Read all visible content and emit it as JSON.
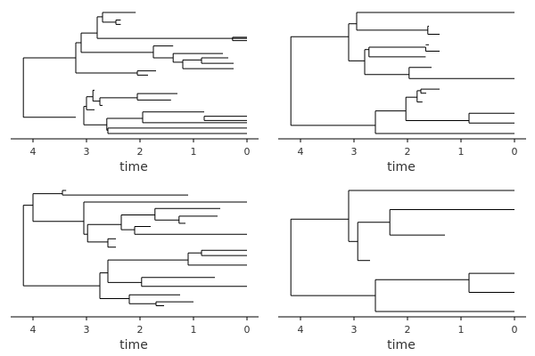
{
  "chart_data": [
    {
      "type": "tree",
      "panel": "top-left",
      "xlabel": "time",
      "x_ticks": [
        4,
        3,
        2,
        1,
        0
      ],
      "xlim": [
        4.35,
        -0.15
      ],
      "segments": [
        [
          4.18,
          7.0,
          3.2,
          7.0
        ],
        [
          4.18,
          1.5,
          3.2,
          1.5
        ],
        [
          4.18,
          1.5,
          4.18,
          7.0
        ],
        [
          3.2,
          8.4,
          3.1,
          8.4
        ],
        [
          3.2,
          5.6,
          2.05,
          5.6
        ],
        [
          3.2,
          5.6,
          3.2,
          8.4
        ],
        [
          3.1,
          9.3,
          2.8,
          9.3
        ],
        [
          3.1,
          7.5,
          1.75,
          7.5
        ],
        [
          3.1,
          7.5,
          3.1,
          9.3
        ],
        [
          2.8,
          10.8,
          2.7,
          10.8
        ],
        [
          2.8,
          8.8,
          0.0,
          8.8
        ],
        [
          2.8,
          8.8,
          2.8,
          10.8
        ],
        [
          2.7,
          11.2,
          2.08,
          11.2
        ],
        [
          2.7,
          10.3,
          2.45,
          10.3
        ],
        [
          2.7,
          10.3,
          2.7,
          11.2
        ],
        [
          2.45,
          10.5,
          2.36,
          10.5
        ],
        [
          2.45,
          10.1,
          2.36,
          10.1
        ],
        [
          2.45,
          10.1,
          2.45,
          10.5
        ],
        [
          0.27,
          8.9,
          0.0,
          8.9
        ],
        [
          0.27,
          8.6,
          0.0,
          8.6
        ],
        [
          0.27,
          8.6,
          0.27,
          8.9
        ],
        [
          1.75,
          8.1,
          1.38,
          8.1
        ],
        [
          1.75,
          7.0,
          1.38,
          7.0
        ],
        [
          1.75,
          7.0,
          1.75,
          8.1
        ],
        [
          1.38,
          7.4,
          0.45,
          7.4
        ],
        [
          1.38,
          6.6,
          1.2,
          6.6
        ],
        [
          1.38,
          6.6,
          1.38,
          7.4
        ],
        [
          1.2,
          6.8,
          0.85,
          6.8
        ],
        [
          1.2,
          6.0,
          0.25,
          6.0
        ],
        [
          1.2,
          6.0,
          1.2,
          6.8
        ],
        [
          0.85,
          7.0,
          0.35,
          7.0
        ],
        [
          0.85,
          6.5,
          0.25,
          6.5
        ],
        [
          0.85,
          6.5,
          0.85,
          7.0
        ],
        [
          2.05,
          5.8,
          1.7,
          5.8
        ],
        [
          2.05,
          5.4,
          1.85,
          5.4
        ],
        [
          2.05,
          5.4,
          2.05,
          5.8
        ],
        [
          3.05,
          2.5,
          3.0,
          2.5
        ],
        [
          3.05,
          0.8,
          2.62,
          0.8
        ],
        [
          3.05,
          0.8,
          3.05,
          2.5
        ],
        [
          3.0,
          3.4,
          2.88,
          3.4
        ],
        [
          3.0,
          2.2,
          2.85,
          2.2
        ],
        [
          3.0,
          2.2,
          3.0,
          3.4
        ],
        [
          2.88,
          4.0,
          2.85,
          4.0
        ],
        [
          2.88,
          3.0,
          2.75,
          3.0
        ],
        [
          2.88,
          3.0,
          2.88,
          4.0
        ],
        [
          2.75,
          3.3,
          2.05,
          3.3
        ],
        [
          2.75,
          2.6,
          2.7,
          2.6
        ],
        [
          2.75,
          2.6,
          2.75,
          3.3
        ],
        [
          2.05,
          3.7,
          1.3,
          3.7
        ],
        [
          2.05,
          3.1,
          1.42,
          3.1
        ],
        [
          2.05,
          3.1,
          2.05,
          3.7
        ],
        [
          2.62,
          1.4,
          1.95,
          1.4
        ],
        [
          2.62,
          0.3,
          2.6,
          0.3
        ],
        [
          2.62,
          0.3,
          2.62,
          1.4
        ],
        [
          1.95,
          2.0,
          0.8,
          2.0
        ],
        [
          1.95,
          1.0,
          0.0,
          1.0
        ],
        [
          1.95,
          1.0,
          1.95,
          2.0
        ],
        [
          0.8,
          1.6,
          0.0,
          1.6
        ],
        [
          0.8,
          1.2,
          0.0,
          1.2
        ],
        [
          0.8,
          1.2,
          0.8,
          1.6
        ],
        [
          2.6,
          0.5,
          0.0,
          0.5
        ],
        [
          2.6,
          0.0,
          0.0,
          0.0
        ],
        [
          2.6,
          0.0,
          2.6,
          0.5
        ]
      ]
    },
    {
      "type": "tree",
      "panel": "top-right",
      "xlabel": "time",
      "x_ticks": [
        4,
        3,
        2,
        1,
        0
      ],
      "xlim": [
        4.35,
        -0.15
      ],
      "segments": [
        [
          4.18,
          12.0,
          3.1,
          12.0
        ],
        [
          4.18,
          1.0,
          2.6,
          1.0
        ],
        [
          4.18,
          1.0,
          4.18,
          12.0
        ],
        [
          3.1,
          13.6,
          2.95,
          13.6
        ],
        [
          3.1,
          9.0,
          2.8,
          9.0
        ],
        [
          3.1,
          9.0,
          3.1,
          13.6
        ],
        [
          2.95,
          15.0,
          0.0,
          15.0
        ],
        [
          2.95,
          12.8,
          1.62,
          12.8
        ],
        [
          2.95,
          12.8,
          2.95,
          15.0
        ],
        [
          1.62,
          13.3,
          1.6,
          13.3
        ],
        [
          1.62,
          12.3,
          1.4,
          12.3
        ],
        [
          1.62,
          12.3,
          1.62,
          13.3
        ],
        [
          2.8,
          10.4,
          2.72,
          10.4
        ],
        [
          2.8,
          7.3,
          1.97,
          7.3
        ],
        [
          2.8,
          7.3,
          2.8,
          10.4
        ],
        [
          2.72,
          10.7,
          1.66,
          10.7
        ],
        [
          2.72,
          9.5,
          1.66,
          9.5
        ],
        [
          2.72,
          9.5,
          2.72,
          10.7
        ],
        [
          1.66,
          11.0,
          1.6,
          11.0
        ],
        [
          1.66,
          10.2,
          1.4,
          10.2
        ],
        [
          1.66,
          10.2,
          1.66,
          10.7
        ],
        [
          1.97,
          8.2,
          1.55,
          8.2
        ],
        [
          1.97,
          6.8,
          0.0,
          6.8
        ],
        [
          1.97,
          6.8,
          1.97,
          8.2
        ],
        [
          2.6,
          2.8,
          2.03,
          2.8
        ],
        [
          2.6,
          0.0,
          0.0,
          0.0
        ],
        [
          2.6,
          0.0,
          2.6,
          2.8
        ],
        [
          2.03,
          4.5,
          1.82,
          4.5
        ],
        [
          2.03,
          1.6,
          0.85,
          1.6
        ],
        [
          2.03,
          1.6,
          2.03,
          4.5
        ],
        [
          1.82,
          5.3,
          1.75,
          5.3
        ],
        [
          1.82,
          3.9,
          1.72,
          3.9
        ],
        [
          1.82,
          3.9,
          1.82,
          5.3
        ],
        [
          1.75,
          5.5,
          1.4,
          5.5
        ],
        [
          1.75,
          5.0,
          1.65,
          5.0
        ],
        [
          1.75,
          5.0,
          1.75,
          5.5
        ],
        [
          0.85,
          2.5,
          0.0,
          2.5
        ],
        [
          0.85,
          1.3,
          0.0,
          1.3
        ],
        [
          0.85,
          1.3,
          0.85,
          2.5
        ]
      ]
    },
    {
      "type": "tree",
      "panel": "bottom-left",
      "xlabel": "time",
      "x_ticks": [
        4,
        3,
        2,
        1,
        0
      ],
      "xlim": [
        4.35,
        -0.15
      ],
      "segments": [
        [
          4.18,
          16.5,
          4.0,
          16.5
        ],
        [
          4.18,
          4.0,
          2.75,
          4.0
        ],
        [
          4.18,
          4.0,
          4.18,
          16.5
        ],
        [
          4.0,
          18.3,
          3.45,
          18.3
        ],
        [
          4.0,
          14.0,
          3.05,
          14.0
        ],
        [
          4.0,
          14.0,
          4.0,
          18.3
        ],
        [
          3.45,
          18.8,
          3.38,
          18.8
        ],
        [
          3.45,
          18.1,
          1.1,
          18.1
        ],
        [
          3.45,
          18.1,
          3.45,
          18.8
        ],
        [
          3.05,
          17.0,
          0.0,
          17.0
        ],
        [
          3.05,
          12.0,
          2.98,
          12.0
        ],
        [
          3.05,
          12.0,
          3.05,
          17.0
        ],
        [
          2.98,
          13.5,
          2.35,
          13.5
        ],
        [
          2.98,
          10.8,
          2.6,
          10.8
        ],
        [
          2.98,
          10.8,
          2.98,
          13.5
        ],
        [
          2.35,
          15.0,
          1.72,
          15.0
        ],
        [
          2.35,
          12.7,
          2.1,
          12.7
        ],
        [
          2.35,
          12.7,
          2.35,
          15.0
        ],
        [
          1.72,
          16.0,
          0.5,
          16.0
        ],
        [
          1.72,
          14.2,
          1.27,
          14.2
        ],
        [
          1.72,
          14.2,
          1.72,
          16.0
        ],
        [
          1.27,
          14.8,
          0.55,
          14.8
        ],
        [
          1.27,
          13.7,
          1.15,
          13.7
        ],
        [
          1.27,
          13.7,
          1.27,
          14.8
        ],
        [
          2.1,
          13.2,
          1.8,
          13.2
        ],
        [
          2.1,
          12.0,
          0.0,
          12.0
        ],
        [
          2.1,
          12.0,
          2.1,
          13.2
        ],
        [
          2.6,
          11.3,
          2.45,
          11.3
        ],
        [
          2.6,
          10.0,
          2.45,
          10.0
        ],
        [
          2.6,
          10.0,
          2.6,
          11.3
        ],
        [
          2.75,
          6.0,
          2.6,
          6.0
        ],
        [
          2.75,
          2.0,
          2.2,
          2.0
        ],
        [
          2.75,
          2.0,
          2.75,
          6.0
        ],
        [
          2.6,
          8.0,
          1.1,
          8.0
        ],
        [
          2.6,
          4.5,
          1.97,
          4.5
        ],
        [
          2.6,
          4.5,
          2.6,
          8.0
        ],
        [
          1.1,
          9.1,
          0.85,
          9.1
        ],
        [
          1.1,
          7.2,
          0.0,
          7.2
        ],
        [
          1.1,
          7.2,
          1.1,
          9.1
        ],
        [
          0.85,
          9.5,
          0.0,
          9.5
        ],
        [
          0.85,
          8.7,
          0.0,
          8.7
        ],
        [
          0.85,
          8.7,
          0.85,
          9.5
        ],
        [
          1.97,
          5.3,
          0.6,
          5.3
        ],
        [
          1.97,
          3.9,
          0.0,
          3.9
        ],
        [
          1.97,
          3.9,
          1.97,
          5.3
        ],
        [
          2.2,
          2.6,
          1.25,
          2.6
        ],
        [
          2.2,
          1.2,
          1.7,
          1.2
        ],
        [
          2.2,
          1.2,
          2.2,
          2.6
        ],
        [
          1.7,
          1.5,
          1.0,
          1.5
        ],
        [
          1.7,
          0.9,
          1.55,
          0.9
        ],
        [
          1.7,
          0.9,
          1.7,
          1.5
        ]
      ]
    },
    {
      "type": "tree",
      "panel": "bottom-right",
      "xlabel": "time",
      "x_ticks": [
        4,
        3,
        2,
        1,
        0
      ],
      "xlim": [
        4.35,
        -0.15
      ],
      "segments": [
        [
          4.18,
          14.5,
          3.1,
          14.5
        ],
        [
          4.18,
          2.5,
          2.6,
          2.5
        ],
        [
          4.18,
          2.5,
          4.18,
          14.5
        ],
        [
          3.1,
          19.0,
          0.0,
          19.0
        ],
        [
          3.1,
          11.0,
          2.93,
          11.0
        ],
        [
          3.1,
          11.0,
          3.1,
          19.0
        ],
        [
          2.93,
          14.0,
          2.33,
          14.0
        ],
        [
          2.93,
          8.0,
          2.7,
          8.0
        ],
        [
          2.93,
          8.0,
          2.93,
          14.0
        ],
        [
          2.33,
          16.0,
          0.0,
          16.0
        ],
        [
          2.33,
          12.0,
          1.3,
          12.0
        ],
        [
          2.33,
          12.0,
          2.33,
          16.0
        ],
        [
          2.6,
          5.0,
          0.85,
          5.0
        ],
        [
          2.6,
          0.0,
          0.0,
          0.0
        ],
        [
          2.6,
          0.0,
          2.6,
          5.0
        ],
        [
          0.85,
          6.0,
          0.0,
          6.0
        ],
        [
          0.85,
          3.0,
          0.0,
          3.0
        ],
        [
          0.85,
          3.0,
          0.85,
          6.0
        ]
      ]
    }
  ]
}
